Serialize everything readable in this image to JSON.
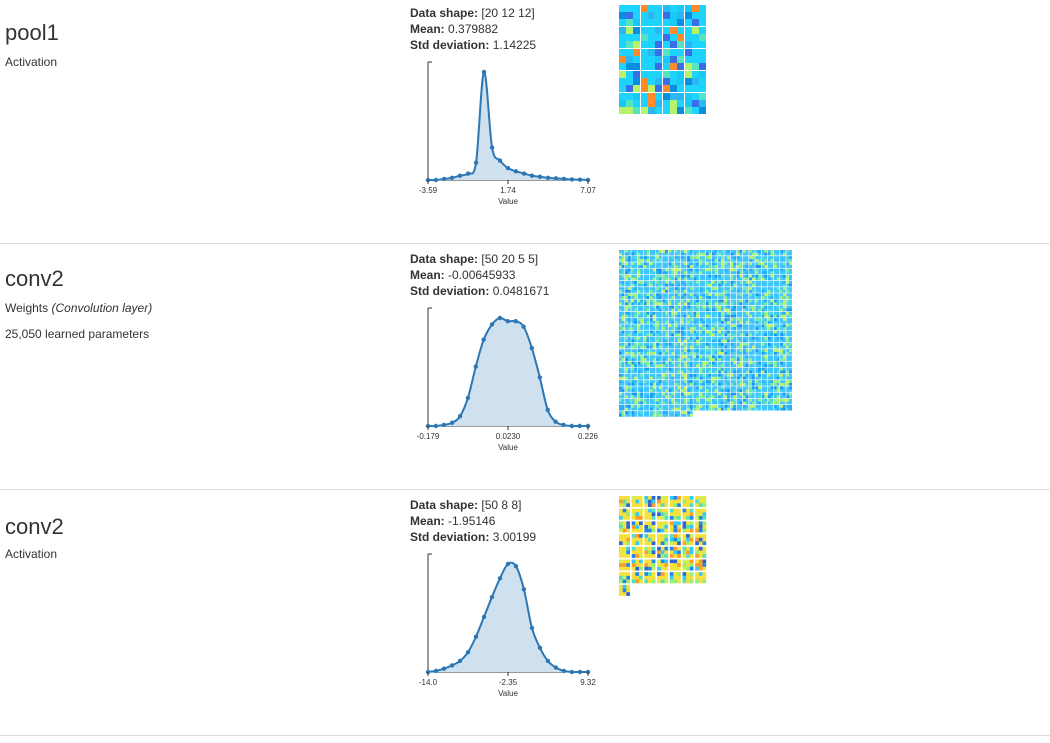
{
  "layers": [
    {
      "name": "pool1",
      "type_label": "Activation",
      "type_sub": "",
      "params": "",
      "stats": {
        "shape_label": "Data shape:",
        "shape_value": "[20 12 12]",
        "mean_label": "Mean:",
        "mean_value": "0.379882",
        "std_label": "Std deviation:",
        "std_value": "1.14225"
      },
      "chart_data": {
        "type": "area",
        "xlabel": "Value",
        "ticks": [
          "-3.59",
          "1.74",
          "7.07"
        ],
        "xlim": [
          -3.59,
          7.07
        ],
        "x": [
          -3.59,
          -3.06,
          -2.52,
          -1.99,
          -1.46,
          -0.92,
          -0.39,
          0.14,
          0.68,
          1.21,
          1.74,
          2.27,
          2.81,
          3.34,
          3.87,
          4.41,
          4.94,
          5.47,
          6.0,
          6.54,
          7.07
        ],
        "values": [
          0.0,
          0.0,
          0.01,
          0.02,
          0.04,
          0.06,
          0.16,
          1.0,
          0.3,
          0.18,
          0.11,
          0.08,
          0.06,
          0.04,
          0.03,
          0.02,
          0.015,
          0.01,
          0.005,
          0.003,
          0.0
        ]
      },
      "viz_colors": [
        "#1fd3ff",
        "#2ab8f2",
        "#55e3c0",
        "#0a8fe0",
        "#b7f26a",
        "#ff8a2a",
        "#3a6ee6",
        "#18c8f6"
      ]
    },
    {
      "name": "conv2",
      "type_label": "Weights",
      "type_sub": "(Convolution layer)",
      "params": "25,050 learned parameters",
      "stats": {
        "shape_label": "Data shape:",
        "shape_value": "[50 20 5 5]",
        "mean_label": "Mean:",
        "mean_value": "-0.00645933",
        "std_label": "Std deviation:",
        "std_value": "0.0481671"
      },
      "chart_data": {
        "type": "area",
        "xlabel": "Value",
        "ticks": [
          "-0.179",
          "0.0230",
          "0.226"
        ],
        "xlim": [
          -0.179,
          0.226
        ],
        "x": [
          -0.179,
          -0.159,
          -0.139,
          -0.118,
          -0.098,
          -0.078,
          -0.058,
          -0.038,
          -0.017,
          0.003,
          0.023,
          0.043,
          0.063,
          0.084,
          0.104,
          0.124,
          0.144,
          0.164,
          0.185,
          0.205,
          0.226
        ],
        "values": [
          0.0,
          0.0,
          0.01,
          0.03,
          0.09,
          0.26,
          0.55,
          0.8,
          0.94,
          1.0,
          0.97,
          0.97,
          0.92,
          0.72,
          0.45,
          0.15,
          0.04,
          0.01,
          0.0,
          0.0,
          0.0
        ]
      },
      "viz_colors": [
        "#3ec6ff",
        "#7ee9a0",
        "#25aef7",
        "#c8f460",
        "#58d8d6",
        "#1c96f0",
        "#9ff27c",
        "#40c2f9"
      ]
    },
    {
      "name": "conv2",
      "type_label": "Activation",
      "type_sub": "",
      "params": "",
      "stats": {
        "shape_label": "Data shape:",
        "shape_value": "[50 8 8]",
        "mean_label": "Mean:",
        "mean_value": "-1.95146",
        "std_label": "Std deviation:",
        "std_value": "3.00199"
      },
      "chart_data": {
        "type": "area",
        "xlabel": "Value",
        "ticks": [
          "-14.0",
          "-2.35",
          "9.32"
        ],
        "xlim": [
          -14.0,
          9.32
        ],
        "x": [
          -14.0,
          -12.83,
          -11.67,
          -10.5,
          -9.34,
          -8.17,
          -7.01,
          -5.84,
          -4.68,
          -3.51,
          -2.35,
          -1.18,
          -0.02,
          1.15,
          2.31,
          3.48,
          4.64,
          5.81,
          6.97,
          8.14,
          9.32
        ],
        "values": [
          0.0,
          0.01,
          0.03,
          0.06,
          0.1,
          0.18,
          0.32,
          0.5,
          0.68,
          0.85,
          0.98,
          0.96,
          0.75,
          0.4,
          0.22,
          0.1,
          0.04,
          0.01,
          0.0,
          0.0,
          0.0
        ]
      },
      "viz_colors": [
        "#f6e13a",
        "#33c9ff",
        "#92f07a",
        "#ff9b2b",
        "#1f86ee",
        "#c9f35a",
        "#4fe0c6",
        "#2b63d9"
      ]
    }
  ]
}
